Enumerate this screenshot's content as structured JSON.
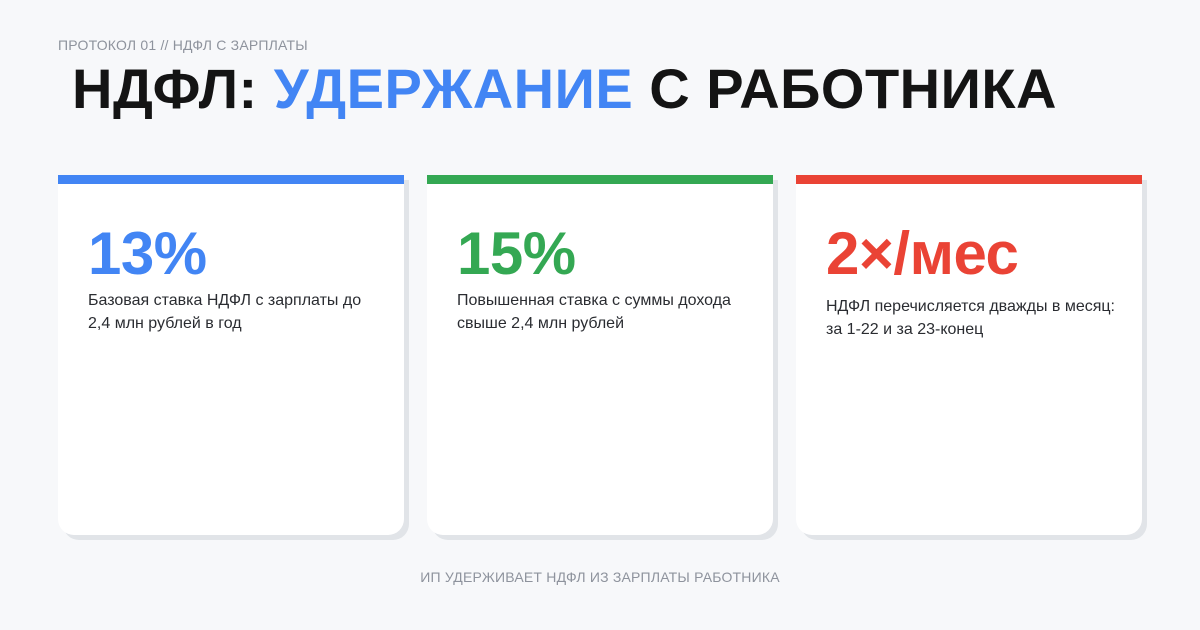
{
  "kicker": "ПРОТОКОЛ 01 // НДФЛ С ЗАРПЛАТЫ",
  "title": {
    "part1": "НДФЛ:",
    "accent": "УДЕРЖАНИЕ",
    "part2": "С РАБОТНИКА"
  },
  "colors": {
    "accent": "#4285f4",
    "blue": "#4285f4",
    "green": "#34a853",
    "red": "#ea4335",
    "text": "#141414",
    "muted": "#8e939d",
    "background": "#f7f8fa"
  },
  "cards": [
    {
      "value": "13%",
      "description": "Базовая ставка НДФЛ с зарплаты до 2,4 млн рублей в год",
      "color": "#4285f4"
    },
    {
      "value": "15%",
      "description": "Повышенная ставка с суммы дохода свыше 2,4 млн рублей",
      "color": "#34a853"
    },
    {
      "value": "2×/мес",
      "description": "НДФЛ перечисляется дважды в месяц: за 1-22 и за 23-конец",
      "color": "#ea4335"
    }
  ],
  "footer": "ИП УДЕРЖИВАЕТ НДФЛ ИЗ ЗАРПЛАТЫ РАБОТНИКА"
}
